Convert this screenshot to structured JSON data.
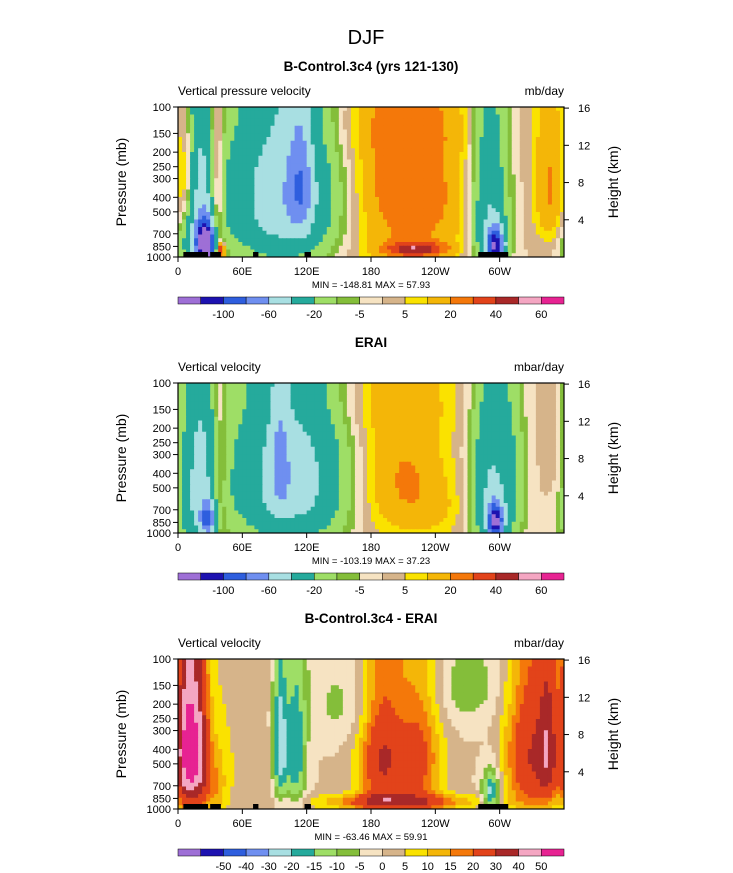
{
  "page": {
    "season": "DJF",
    "palette": [
      "#9e6fd6",
      "#1d12b0",
      "#2e5ede",
      "#6f8ff0",
      "#a8dfe2",
      "#25aa9c",
      "#9ede66",
      "#84be3a",
      "#f6e3c2",
      "#d6b48a",
      "#fae200",
      "#f4b608",
      "#f4780a",
      "#e2431a",
      "#a92828",
      "#f4a6c2",
      "#e72392"
    ]
  },
  "chart_data": [
    {
      "type": "heatmap",
      "title": "B-Control.3c4 (yrs 121-130)",
      "left_label": "Vertical pressure velocity",
      "units": "mb/day",
      "ylabel": "Pressure (mb)",
      "ylabel_right": "Height (km)",
      "x_ticks": [
        "0",
        "60E",
        "120E",
        "180",
        "120W",
        "60W"
      ],
      "x_tick_lon": [
        0,
        60,
        120,
        180,
        240,
        300
      ],
      "xlim": [
        0,
        360
      ],
      "y_ticks": [
        "100",
        "150",
        "200",
        "250",
        "300",
        "400",
        "500",
        "700",
        "850",
        "1000"
      ],
      "y_tick_p": [
        100,
        150,
        200,
        250,
        300,
        400,
        500,
        700,
        850,
        1000
      ],
      "ylim": [
        1000,
        100
      ],
      "height_ticks": [
        "4",
        "8",
        "12",
        "16"
      ],
      "height_km": [
        4,
        8,
        12,
        16
      ],
      "stats": "MIN = -148.81   MAX =  57.93",
      "levels": [
        -120,
        -100,
        -80,
        -60,
        -40,
        -20,
        -10,
        -5,
        0,
        5,
        10,
        20,
        30,
        40,
        50,
        60
      ],
      "colorbar_labels": [
        "-100",
        "-60",
        "-20",
        "-5",
        "5",
        "20",
        "40",
        "60"
      ],
      "colorbar_label_index": [
        1,
        3,
        5,
        7,
        9,
        11,
        13,
        15
      ],
      "features": [
        {
          "lon": 20,
          "p": 500,
          "sx": 14,
          "sp": 550,
          "amp": -45
        },
        {
          "lon": 26,
          "p": 830,
          "sx": 6,
          "sp": 180,
          "amp": -140
        },
        {
          "lon": 36,
          "p": 420,
          "sx": 5,
          "sp": 500,
          "amp": 35
        },
        {
          "lon": 40,
          "p": 900,
          "sx": 3,
          "sp": 80,
          "amp": 50
        },
        {
          "lon": 8,
          "p": 300,
          "sx": 5,
          "sp": 200,
          "amp": 25
        },
        {
          "lon": 98,
          "p": 400,
          "sx": 35,
          "sp": 420,
          "amp": -55
        },
        {
          "lon": 114,
          "p": 330,
          "sx": 8,
          "sp": 230,
          "amp": -35
        },
        {
          "lon": 210,
          "p": 470,
          "sx": 35,
          "sp": 560,
          "amp": 22
        },
        {
          "lon": 200,
          "p": 260,
          "sx": 25,
          "sp": 180,
          "amp": 8
        },
        {
          "lon": 222,
          "p": 890,
          "sx": 20,
          "sp": 70,
          "amp": 35
        },
        {
          "lon": 252,
          "p": 380,
          "sx": 22,
          "sp": 320,
          "amp": 8
        },
        {
          "lon": 290,
          "p": 500,
          "sx": 12,
          "sp": 480,
          "amp": -40
        },
        {
          "lon": 296,
          "p": 850,
          "sx": 6,
          "sp": 160,
          "amp": -100
        },
        {
          "lon": 350,
          "p": 350,
          "sx": 12,
          "sp": 280,
          "amp": 25
        },
        {
          "lon": 165,
          "p": 130,
          "sx": 90,
          "sp": 60,
          "amp": 5
        }
      ],
      "terrain": [
        [
          5,
          28
        ],
        [
          30,
          40
        ],
        [
          70,
          75
        ],
        [
          118,
          124
        ],
        [
          280,
          308
        ]
      ]
    },
    {
      "type": "heatmap",
      "title": "ERAI",
      "left_label": "Vertical velocity",
      "units": "mbar/day",
      "ylabel": "Pressure (mb)",
      "ylabel_right": "Height (km)",
      "x_ticks": [
        "0",
        "60E",
        "120E",
        "180",
        "120W",
        "60W"
      ],
      "x_tick_lon": [
        0,
        60,
        120,
        180,
        240,
        300
      ],
      "xlim": [
        0,
        360
      ],
      "y_ticks": [
        "100",
        "150",
        "200",
        "250",
        "300",
        "400",
        "500",
        "700",
        "850",
        "1000"
      ],
      "y_tick_p": [
        100,
        150,
        200,
        250,
        300,
        400,
        500,
        700,
        850,
        1000
      ],
      "ylim": [
        1000,
        100
      ],
      "height_ticks": [
        "4",
        "8",
        "12",
        "16"
      ],
      "height_km": [
        4,
        8,
        12,
        16
      ],
      "stats": "MIN = -103.19   MAX =  37.23",
      "levels": [
        -120,
        -100,
        -80,
        -60,
        -40,
        -20,
        -10,
        -5,
        0,
        5,
        10,
        20,
        30,
        40,
        50,
        60
      ],
      "colorbar_labels": [
        "-100",
        "-60",
        "-20",
        "-5",
        "5",
        "20",
        "40",
        "60"
      ],
      "colorbar_label_index": [
        1,
        3,
        5,
        7,
        9,
        11,
        13,
        15
      ],
      "features": [
        {
          "lon": 20,
          "p": 500,
          "sx": 14,
          "sp": 550,
          "amp": -45
        },
        {
          "lon": 28,
          "p": 820,
          "sx": 5,
          "sp": 150,
          "amp": -60
        },
        {
          "lon": 38,
          "p": 450,
          "sx": 6,
          "sp": 450,
          "amp": 22
        },
        {
          "lon": 105,
          "p": 450,
          "sx": 38,
          "sp": 450,
          "amp": -52
        },
        {
          "lon": 95,
          "p": 330,
          "sx": 6,
          "sp": 230,
          "amp": -25
        },
        {
          "lon": 215,
          "p": 450,
          "sx": 25,
          "sp": 380,
          "amp": 18
        },
        {
          "lon": 180,
          "p": 400,
          "sx": 25,
          "sp": 450,
          "amp": 8
        },
        {
          "lon": 245,
          "p": 700,
          "sx": 20,
          "sp": 250,
          "amp": 6
        },
        {
          "lon": 290,
          "p": 550,
          "sx": 12,
          "sp": 450,
          "amp": -40
        },
        {
          "lon": 296,
          "p": 850,
          "sx": 5,
          "sp": 150,
          "amp": -100
        },
        {
          "lon": 310,
          "p": 500,
          "sx": 10,
          "sp": 450,
          "amp": -20
        },
        {
          "lon": 355,
          "p": 300,
          "sx": 10,
          "sp": 200,
          "amp": 8
        },
        {
          "lon": 165,
          "p": 130,
          "sx": 90,
          "sp": 60,
          "amp": 5
        }
      ],
      "terrain": []
    },
    {
      "type": "heatmap",
      "title": "B-Control.3c4 - ERAI",
      "left_label": "Vertical velocity",
      "units": "mbar/day",
      "ylabel": "Pressure (mb)",
      "ylabel_right": "Height (km)",
      "x_ticks": [
        "0",
        "60E",
        "120E",
        "180",
        "120W",
        "60W"
      ],
      "x_tick_lon": [
        0,
        60,
        120,
        180,
        240,
        300
      ],
      "xlim": [
        0,
        360
      ],
      "y_ticks": [
        "100",
        "150",
        "200",
        "250",
        "300",
        "400",
        "500",
        "700",
        "850",
        "1000"
      ],
      "y_tick_p": [
        100,
        150,
        200,
        250,
        300,
        400,
        500,
        700,
        850,
        1000
      ],
      "ylim": [
        1000,
        100
      ],
      "height_ticks": [
        "4",
        "8",
        "12",
        "16"
      ],
      "height_km": [
        4,
        8,
        12,
        16
      ],
      "stats": "MIN = -63.46   MAX =  59.91",
      "levels": [
        -60,
        -50,
        -40,
        -30,
        -20,
        -15,
        -10,
        -5,
        0,
        5,
        10,
        15,
        20,
        30,
        40,
        50
      ],
      "colorbar_labels": [
        "-50",
        "-40",
        "-30",
        "-20",
        "-15",
        "-10",
        "-5",
        "0",
        "5",
        "10",
        "15",
        "20",
        "30",
        "40",
        "50"
      ],
      "colorbar_label_index": [
        1,
        2,
        3,
        4,
        5,
        6,
        7,
        8,
        9,
        10,
        11,
        12,
        13,
        14,
        15
      ],
      "features": [
        {
          "lon": 10,
          "p": 420,
          "sx": 8,
          "sp": 350,
          "amp": 55
        },
        {
          "lon": 22,
          "p": 450,
          "sx": 6,
          "sp": 350,
          "amp": 22
        },
        {
          "lon": 35,
          "p": 700,
          "sx": 8,
          "sp": 300,
          "amp": 12
        },
        {
          "lon": 95,
          "p": 400,
          "sx": 5,
          "sp": 300,
          "amp": -25
        },
        {
          "lon": 110,
          "p": 450,
          "sx": 7,
          "sp": 350,
          "amp": -20
        },
        {
          "lon": 165,
          "p": 200,
          "sx": 35,
          "sp": 100,
          "amp": -7
        },
        {
          "lon": 190,
          "p": 450,
          "sx": 15,
          "sp": 400,
          "amp": 30
        },
        {
          "lon": 225,
          "p": 450,
          "sx": 15,
          "sp": 400,
          "amp": 22
        },
        {
          "lon": 205,
          "p": 900,
          "sx": 50,
          "sp": 80,
          "amp": 25
        },
        {
          "lon": 270,
          "p": 150,
          "sx": 30,
          "sp": 80,
          "amp": -8
        },
        {
          "lon": 292,
          "p": 800,
          "sx": 6,
          "sp": 200,
          "amp": -25
        },
        {
          "lon": 330,
          "p": 450,
          "sx": 18,
          "sp": 400,
          "amp": 30
        },
        {
          "lon": 345,
          "p": 400,
          "sx": 6,
          "sp": 300,
          "amp": 20
        },
        {
          "lon": 60,
          "p": 400,
          "sx": 30,
          "sp": 500,
          "amp": 4
        }
      ],
      "terrain": [
        [
          5,
          28
        ],
        [
          30,
          40
        ],
        [
          70,
          75
        ],
        [
          118,
          124
        ],
        [
          280,
          308
        ]
      ]
    }
  ]
}
